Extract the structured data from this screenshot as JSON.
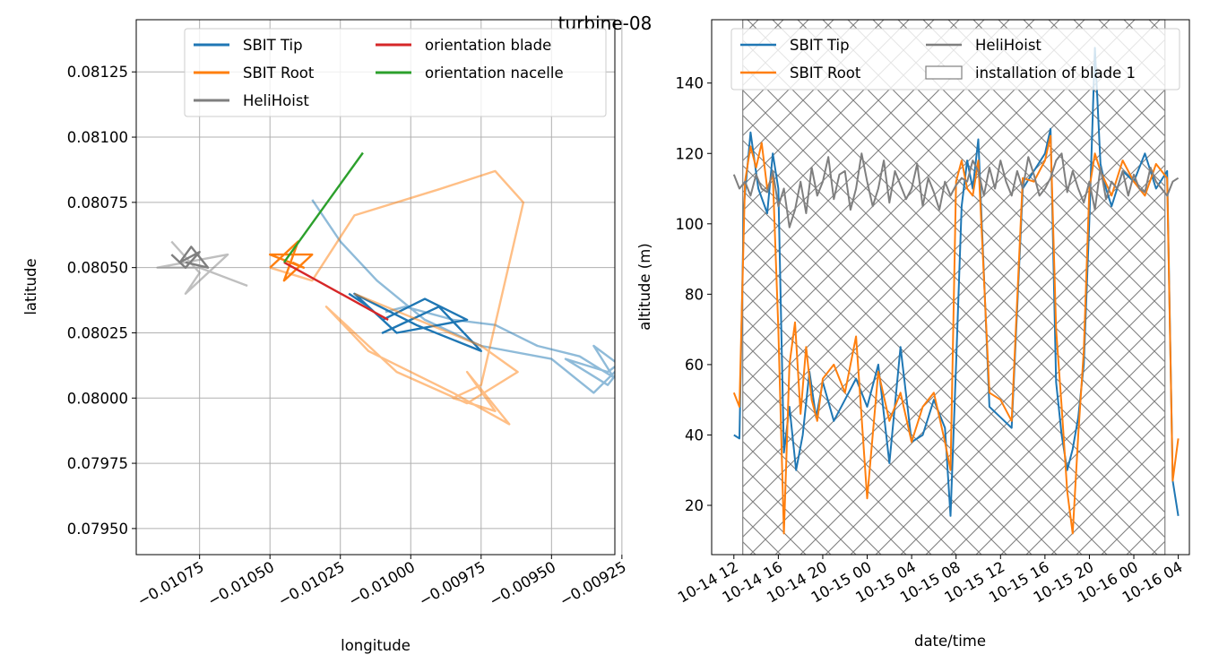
{
  "figure_title": "turbine-08",
  "chart_data": [
    {
      "type": "line",
      "xlabel": "longitude",
      "ylabel": "latitude",
      "xlim": [
        -0.010975,
        -0.009275
      ],
      "ylim": [
        0.0794,
        0.08145
      ],
      "xticks": [
        -0.01075,
        -0.0105,
        -0.01025,
        -0.01,
        -0.00975,
        -0.0095,
        -0.00925
      ],
      "xtick_labels": [
        "−0.01075",
        "−0.01050",
        "−0.01025",
        "−0.01000",
        "−0.00975",
        "−0.00950",
        "−0.00925"
      ],
      "yticks": [
        0.0795,
        0.07975,
        0.08,
        0.08025,
        0.0805,
        0.08075,
        0.081,
        0.08125
      ],
      "ytick_labels": [
        "0.07950",
        "0.07975",
        "0.08000",
        "0.08025",
        "0.08050",
        "0.08075",
        "0.08100",
        "0.08125"
      ],
      "grid": true,
      "legend_position": "top-right",
      "legend_columns": 2,
      "series": [
        {
          "name": "SBIT Tip",
          "color": "#1f77b4",
          "alpha": 0.5,
          "legend": false,
          "x": [
            -0.01009,
            -0.01002,
            -0.00985,
            -0.0097,
            -0.00955,
            -0.0094,
            -0.00928,
            -0.00935,
            -0.00925,
            -0.0093,
            -0.00945,
            -0.0093,
            -0.0092,
            -0.00935,
            -0.0095,
            -0.00975,
            -0.00995,
            -0.01012,
            -0.01025,
            -0.01035
          ],
          "y": [
            0.08033,
            0.08035,
            0.0803,
            0.08028,
            0.0802,
            0.08016,
            0.08008,
            0.0802,
            0.08012,
            0.08005,
            0.08015,
            0.0801,
            0.08018,
            0.08002,
            0.08015,
            0.0802,
            0.0803,
            0.08045,
            0.0806,
            0.08076
          ]
        },
        {
          "name": "SBIT Tip",
          "color": "#1f77b4",
          "alpha": 1,
          "legend": true,
          "x": [
            -0.01022,
            -0.01015,
            -0.0101,
            -0.00995,
            -0.0098,
            -0.01005,
            -0.0102,
            -0.00998,
            -0.00975,
            -0.0099,
            -0.0101,
            -0.01
          ],
          "y": [
            0.0804,
            0.08035,
            0.0803,
            0.08038,
            0.0803,
            0.08025,
            0.0804,
            0.08028,
            0.08018,
            0.08035,
            0.08025,
            0.0803
          ]
        },
        {
          "name": "SBIT Root",
          "color": "#ff7f0e",
          "alpha": 0.5,
          "legend": false,
          "x": [
            -0.0105,
            -0.01035,
            -0.0102,
            -0.0099,
            -0.0097,
            -0.0096,
            -0.00975,
            -0.00985,
            -0.0097,
            -0.0098,
            -0.00965,
            -0.00985,
            -0.01015,
            -0.0103,
            -0.01005,
            -0.0098,
            -0.00962,
            -0.00975,
            -0.0102
          ],
          "y": [
            0.0805,
            0.08045,
            0.0807,
            0.0808,
            0.08087,
            0.08075,
            0.08005,
            0.08,
            0.07995,
            0.0801,
            0.0799,
            0.08002,
            0.08018,
            0.08035,
            0.0801,
            0.07998,
            0.0801,
            0.0802,
            0.0804
          ]
        },
        {
          "name": "SBIT Root",
          "color": "#ff7f0e",
          "alpha": 1,
          "legend": true,
          "x": [
            -0.0105,
            -0.0104,
            -0.01045,
            -0.01035,
            -0.0105,
            -0.01038,
            -0.01042
          ],
          "y": [
            0.0805,
            0.0806,
            0.08045,
            0.08055,
            0.08055,
            0.0805,
            0.08052
          ]
        },
        {
          "name": "HeliHoist",
          "color": "#7f7f7f",
          "alpha": 0.5,
          "legend": false,
          "x": [
            -0.01085,
            -0.01075,
            -0.0108,
            -0.01065,
            -0.0109,
            -0.01075,
            -0.01058
          ],
          "y": [
            0.0806,
            0.08048,
            0.0804,
            0.08055,
            0.0805,
            0.0805,
            0.08043
          ]
        },
        {
          "name": "HeliHoist",
          "color": "#7f7f7f",
          "alpha": 1,
          "legend": true,
          "x": [
            -0.01085,
            -0.0108,
            -0.01075,
            -0.01082,
            -0.01078,
            -0.01072,
            -0.0108
          ],
          "y": [
            0.08055,
            0.0805,
            0.08056,
            0.08052,
            0.08058,
            0.0805,
            0.08052
          ]
        },
        {
          "name": "orientation blade",
          "color": "#d62728",
          "alpha": 1,
          "legend": true,
          "x": [
            -0.01045,
            -0.01008
          ],
          "y": [
            0.08052,
            0.0803
          ]
        },
        {
          "name": "orientation nacelle",
          "color": "#2ca02c",
          "alpha": 1,
          "legend": true,
          "x": [
            -0.01045,
            -0.01017
          ],
          "y": [
            0.08052,
            0.08094
          ]
        }
      ]
    },
    {
      "type": "line",
      "xlabel": "date/time",
      "ylabel": "altitude (m)",
      "x_unit": "hours since 10-14 12:00",
      "xlim": [
        -2,
        41
      ],
      "ylim": [
        6,
        158
      ],
      "xticks": [
        0,
        4,
        8,
        12,
        16,
        20,
        24,
        28,
        32,
        36,
        40
      ],
      "xtick_labels": [
        "10-14 12",
        "10-14 16",
        "10-14 20",
        "10-15 00",
        "10-15 04",
        "10-15 08",
        "10-15 12",
        "10-15 16",
        "10-15 20",
        "10-16 00",
        "10-16 04"
      ],
      "yticks": [
        20,
        40,
        60,
        80,
        100,
        120,
        140
      ],
      "ytick_labels": [
        "20",
        "40",
        "60",
        "80",
        "100",
        "120",
        "140"
      ],
      "grid": false,
      "legend_position": "top-right",
      "legend_columns": 2,
      "installation_span": {
        "label": "installation of blade 1",
        "start": 0.8,
        "end": 38.8
      },
      "series": [
        {
          "name": "SBIT Tip",
          "color": "#1f77b4",
          "x": [
            0,
            0.5,
            0.9,
            1.5,
            2.2,
            3,
            3.5,
            4,
            4.5,
            5,
            5.6,
            6.2,
            6.8,
            7.4,
            8,
            9,
            10,
            11,
            12,
            13,
            14,
            15,
            16,
            17,
            18,
            19,
            19.5,
            20,
            20.5,
            21,
            21.5,
            22,
            23,
            24,
            25,
            26,
            27,
            28,
            28.5,
            29,
            29.5,
            30,
            30.5,
            31,
            31.5,
            32,
            32.5,
            33,
            33.5,
            34,
            35,
            36,
            37,
            38,
            39,
            39.5,
            40
          ],
          "y": [
            40,
            39,
            105,
            126,
            110,
            103,
            120,
            110,
            35,
            48,
            30,
            40,
            58,
            45,
            55,
            44,
            50,
            56,
            48,
            60,
            32,
            65,
            38,
            40,
            50,
            42,
            17,
            60,
            105,
            118,
            110,
            124,
            48,
            45,
            42,
            110,
            115,
            120,
            127,
            55,
            40,
            30,
            36,
            45,
            60,
            101,
            150,
            117,
            110,
            105,
            115,
            112,
            120,
            110,
            115,
            27,
            17
          ]
        },
        {
          "name": "SBIT Root",
          "color": "#ff7f0e",
          "x": [
            0,
            0.5,
            1,
            1.5,
            2,
            2.5,
            3,
            3.5,
            4,
            4.5,
            5,
            5.5,
            6,
            6.5,
            7,
            7.5,
            8,
            9,
            10,
            11,
            12,
            13,
            14,
            15,
            16,
            17,
            18,
            19,
            19.5,
            20,
            20.5,
            21,
            21.5,
            22,
            23,
            24,
            25,
            26,
            27,
            28,
            28.5,
            29,
            29.5,
            30,
            30.5,
            31,
            31.5,
            32,
            32.5,
            33,
            34,
            35,
            36,
            37,
            38,
            39,
            39.5,
            40
          ],
          "y": [
            52,
            48,
            112,
            122,
            116,
            123,
            110,
            114,
            70,
            12,
            60,
            72,
            46,
            65,
            50,
            44,
            56,
            60,
            52,
            68,
            22,
            58,
            44,
            52,
            38,
            48,
            52,
            38,
            30,
            112,
            118,
            110,
            108,
            118,
            52,
            50,
            44,
            113,
            112,
            118,
            125,
            70,
            48,
            24,
            12,
            40,
            64,
            110,
            120,
            115,
            108,
            118,
            112,
            108,
            117,
            113,
            27,
            39
          ]
        },
        {
          "name": "HeliHoist",
          "color": "#7f7f7f",
          "x": [
            0,
            0.5,
            1,
            1.5,
            2,
            2.5,
            3,
            3.5,
            4,
            4.5,
            5,
            5.5,
            6,
            6.5,
            7,
            7.5,
            8,
            8.5,
            9,
            9.5,
            10,
            10.5,
            11,
            11.5,
            12,
            12.5,
            13,
            13.5,
            14,
            14.5,
            15,
            15.5,
            16,
            16.5,
            17,
            17.5,
            18,
            18.5,
            19,
            19.5,
            20,
            20.5,
            21,
            21.5,
            22,
            22.5,
            23,
            23.5,
            24,
            24.5,
            25,
            25.5,
            26,
            26.5,
            27,
            27.5,
            28,
            28.5,
            29,
            29.5,
            30,
            30.5,
            31,
            31.5,
            32,
            32.5,
            33,
            33.5,
            34,
            34.5,
            35,
            35.5,
            36,
            36.5,
            37,
            37.5,
            38,
            38.5,
            39,
            39.5,
            40
          ],
          "y": [
            114,
            110,
            112,
            108,
            114,
            110,
            109,
            115,
            105,
            110,
            99,
            104,
            112,
            103,
            116,
            108,
            112,
            119,
            107,
            114,
            115,
            104,
            110,
            120,
            112,
            105,
            110,
            118,
            106,
            115,
            111,
            107,
            110,
            117,
            105,
            113,
            109,
            104,
            112,
            108,
            111,
            113,
            112,
            118,
            115,
            108,
            116,
            110,
            118,
            112,
            108,
            115,
            110,
            119,
            114,
            108,
            110,
            113,
            118,
            120,
            109,
            115,
            110,
            106,
            112,
            104,
            116,
            107,
            112,
            110,
            115,
            108,
            114,
            110,
            109,
            116,
            112,
            110,
            108,
            112,
            113
          ]
        }
      ]
    }
  ]
}
